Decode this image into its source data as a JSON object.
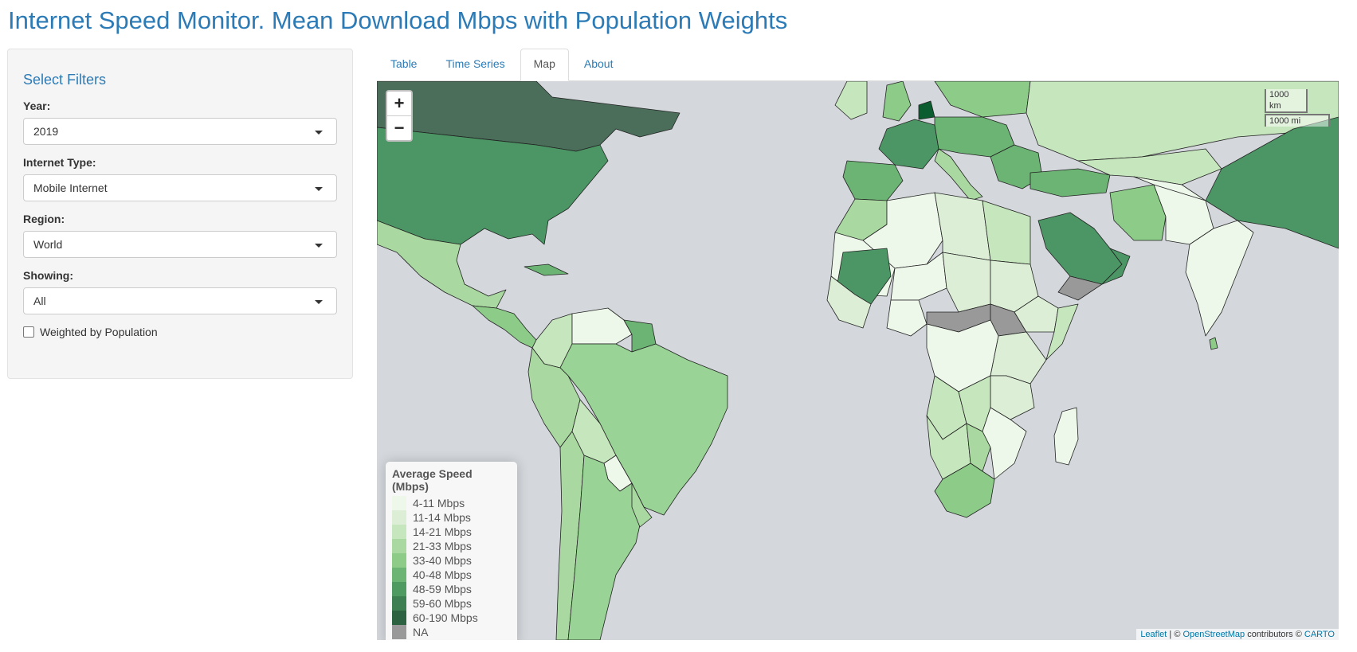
{
  "page": {
    "title": "Internet Speed Monitor. Mean Download Mbps with Population Weights"
  },
  "sidebar": {
    "heading": "Select Filters",
    "year": {
      "label": "Year:",
      "value": "2019"
    },
    "internet_type": {
      "label": "Internet Type:",
      "value": "Mobile Internet"
    },
    "region": {
      "label": "Region:",
      "value": "World"
    },
    "showing": {
      "label": "Showing:",
      "value": "All"
    },
    "weighted": {
      "label": "Weighted by Population",
      "checked": false
    }
  },
  "tabs": [
    {
      "label": "Table",
      "active": false
    },
    {
      "label": "Time Series",
      "active": false
    },
    {
      "label": "Map",
      "active": true
    },
    {
      "label": "About",
      "active": false
    }
  ],
  "map": {
    "zoom_in": "+",
    "zoom_out": "−",
    "scale_km": "1000 km",
    "scale_mi": "1000 mi",
    "legend": {
      "title": "Average Speed (Mbps)",
      "items": [
        {
          "label": "4-11 Mbps",
          "color": "#edf7ea"
        },
        {
          "label": "11-14 Mbps",
          "color": "#dcefd6"
        },
        {
          "label": "14-21 Mbps",
          "color": "#c6e6bd"
        },
        {
          "label": "21-33 Mbps",
          "color": "#a9d9a0"
        },
        {
          "label": "33-40 Mbps",
          "color": "#8ccc88"
        },
        {
          "label": "40-48 Mbps",
          "color": "#6cb473"
        },
        {
          "label": "48-59 Mbps",
          "color": "#4f9a61"
        },
        {
          "label": "59-60 Mbps",
          "color": "#3e7f51"
        },
        {
          "label": "60-190 Mbps",
          "color": "#2d6241"
        },
        {
          "label": "NA",
          "color": "#999999"
        }
      ]
    },
    "attribution": {
      "leaflet": "Leaflet",
      "sep1": " | © ",
      "osm": "OpenStreetMap",
      "mid": " contributors © ",
      "carto": "CARTO"
    }
  }
}
